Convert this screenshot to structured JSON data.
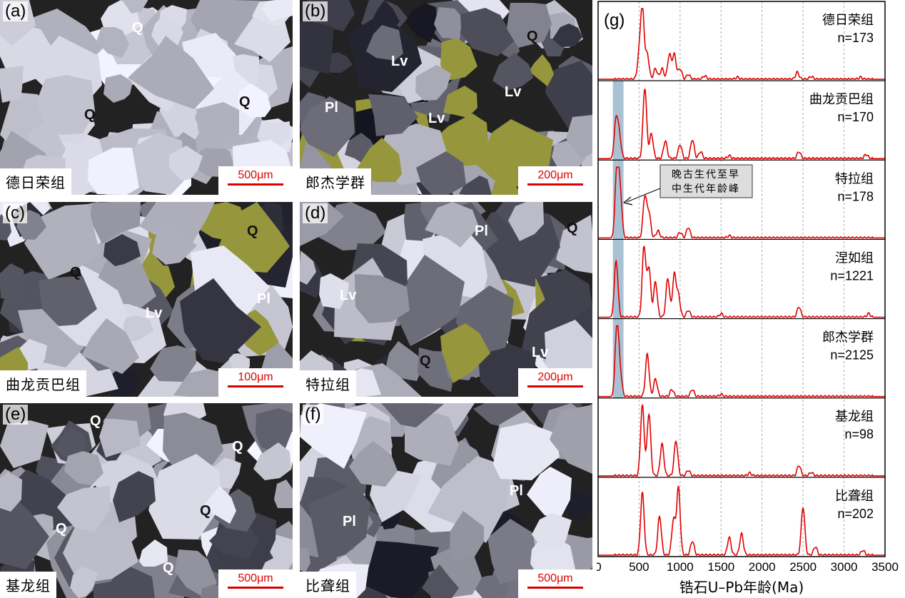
{
  "photos": [
    {
      "label": "(a)",
      "name": "德日荣组",
      "scale": "500μm",
      "minerals": [
        "Q",
        "Q",
        "Q"
      ]
    },
    {
      "label": "(b)",
      "name": "郎杰学群",
      "scale": "200μm",
      "minerals": [
        "Q",
        "Lv",
        "Lv",
        "Lv",
        "Pl"
      ]
    },
    {
      "label": "(c)",
      "name": "曲龙贡巴组",
      "scale": "100μm",
      "minerals": [
        "Q",
        "Q",
        "Lv",
        "Pl"
      ]
    },
    {
      "label": "(d)",
      "name": "特拉组",
      "scale": "200μm",
      "minerals": [
        "Q",
        "Pl",
        "Lv",
        "Q",
        "Lv"
      ]
    },
    {
      "label": "(e)",
      "name": "基龙组",
      "scale": "500μm",
      "minerals": [
        "Q",
        "Q",
        "Q",
        "Q",
        "Q"
      ]
    },
    {
      "label": "(f)",
      "name": "比聋组",
      "scale": "500μm",
      "minerals": [
        "Pl",
        "Pl"
      ]
    }
  ],
  "chart_data": {
    "type": "line",
    "panel_label": "(g)",
    "xlabel": "锆石U–Pb年龄(Ma)",
    "xlim": [
      0,
      3500
    ],
    "xticks": [
      "0",
      "500",
      "1000",
      "1500",
      "2000",
      "2500",
      "3000",
      "3500"
    ],
    "grid": "vertical dashed at 500 Ma intervals",
    "line_color": "#e00000",
    "highlight_band": {
      "range_ma": [
        180,
        310
      ],
      "color": "#a9c2d3",
      "annotation": [
        "晚古生代至早",
        "中生代年龄峰"
      ]
    },
    "series": [
      {
        "name": "德日荣组",
        "n": "n=173",
        "peaks": [
          [
            500,
            0.3
          ],
          [
            540,
            1.0
          ],
          [
            600,
            0.35
          ],
          [
            700,
            0.15
          ],
          [
            780,
            0.15
          ],
          [
            870,
            0.35
          ],
          [
            930,
            0.35
          ],
          [
            1000,
            0.15
          ],
          [
            1100,
            0.07
          ],
          [
            1300,
            0.05
          ],
          [
            1700,
            0.03
          ],
          [
            2430,
            0.1
          ],
          [
            2600,
            0.04
          ],
          [
            3200,
            0.03
          ]
        ]
      },
      {
        "name": "曲龙贡巴组",
        "n": "n=170",
        "peaks": [
          [
            220,
            0.55
          ],
          [
            260,
            0.3
          ],
          [
            570,
            1.0
          ],
          [
            650,
            0.35
          ],
          [
            820,
            0.25
          ],
          [
            1000,
            0.2
          ],
          [
            1150,
            0.27
          ],
          [
            1250,
            0.1
          ],
          [
            1600,
            0.04
          ],
          [
            2450,
            0.1
          ],
          [
            3270,
            0.06
          ]
        ]
      },
      {
        "name": "特拉组",
        "n": "n=178",
        "peaks": [
          [
            230,
            1.0
          ],
          [
            270,
            0.6
          ],
          [
            570,
            0.58
          ],
          [
            620,
            0.35
          ],
          [
            730,
            0.1
          ],
          [
            1000,
            0.08
          ],
          [
            1100,
            0.15
          ],
          [
            1600,
            0.03
          ]
        ]
      },
      {
        "name": "涅如组",
        "n": "n=1221",
        "peaks": [
          [
            220,
            0.8
          ],
          [
            560,
            1.0
          ],
          [
            620,
            0.7
          ],
          [
            700,
            0.5
          ],
          [
            850,
            0.55
          ],
          [
            930,
            0.6
          ],
          [
            980,
            0.3
          ],
          [
            1100,
            0.1
          ],
          [
            1500,
            0.05
          ],
          [
            2450,
            0.15
          ],
          [
            3300,
            0.05
          ]
        ]
      },
      {
        "name": "郎杰学群",
        "n": "n=2125",
        "peaks": [
          [
            230,
            1.0
          ],
          [
            270,
            0.3
          ],
          [
            600,
            0.6
          ],
          [
            700,
            0.25
          ],
          [
            900,
            0.1
          ],
          [
            1150,
            0.1
          ],
          [
            1500,
            0.03
          ]
        ]
      },
      {
        "name": "基龙组",
        "n": "n=98",
        "peaks": [
          [
            540,
            1.0
          ],
          [
            620,
            0.88
          ],
          [
            780,
            0.45
          ],
          [
            950,
            0.5
          ],
          [
            1100,
            0.08
          ],
          [
            1850,
            0.04
          ],
          [
            2450,
            0.15
          ],
          [
            2600,
            0.05
          ]
        ]
      },
      {
        "name": "比聋组",
        "n": "n=202",
        "peaks": [
          [
            540,
            0.88
          ],
          [
            750,
            0.55
          ],
          [
            920,
            0.5
          ],
          [
            980,
            0.95
          ],
          [
            1150,
            0.2
          ],
          [
            1600,
            0.25
          ],
          [
            1750,
            0.3
          ],
          [
            2500,
            0.68
          ],
          [
            2650,
            0.12
          ],
          [
            3230,
            0.07
          ]
        ]
      }
    ]
  }
}
